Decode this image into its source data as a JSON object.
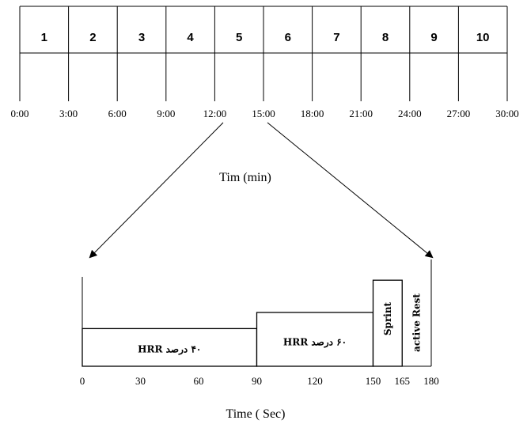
{
  "timeline": {
    "segments": [
      "1",
      "2",
      "3",
      "4",
      "5",
      "6",
      "7",
      "8",
      "9",
      "10"
    ],
    "ticks": [
      "0:00",
      "3:00",
      "6:00",
      "9:00",
      "12:00",
      "15:00",
      "18:00",
      "21:00",
      "24:00",
      "27:00",
      "30:00"
    ],
    "axis_title": "Tim (min)"
  },
  "detail": {
    "phases": [
      {
        "label": "۴۰ درصد HRR",
        "start": 0,
        "end": 90,
        "level": 0.35
      },
      {
        "label": "۶۰ درصد HRR",
        "start": 90,
        "end": 150,
        "level": 0.5
      },
      {
        "label": "Sprint",
        "start": 150,
        "end": 165,
        "level": 0.8
      },
      {
        "label": "active Rest",
        "start": 165,
        "end": 180,
        "level": 0.9
      }
    ],
    "ticks": [
      "0",
      "30",
      "60",
      "90",
      "120",
      "150",
      "165",
      "180"
    ],
    "axis_title": "Time ( Sec)"
  }
}
